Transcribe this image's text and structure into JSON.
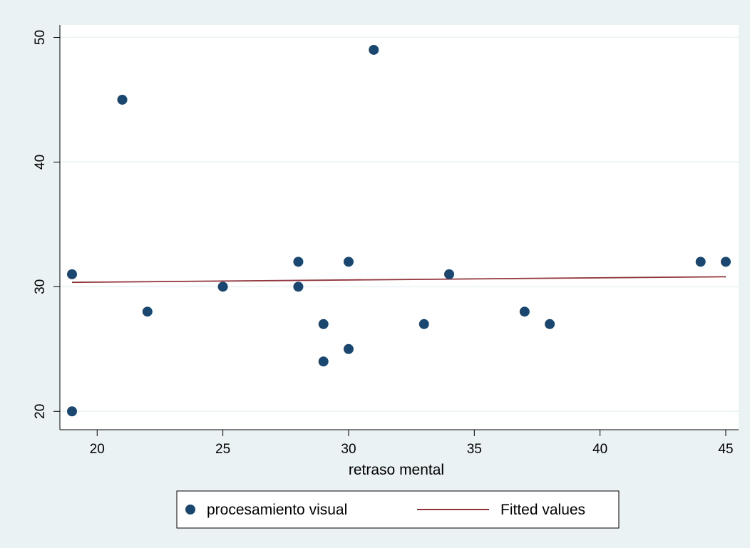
{
  "chart_data": {
    "type": "scatter",
    "xlabel": "retraso mental",
    "ylabel": "",
    "xlim": [
      19,
      45
    ],
    "ylim": [
      19.5,
      51
    ],
    "xticks": [
      20,
      25,
      30,
      35,
      40,
      45
    ],
    "yticks": [
      20,
      30,
      40,
      50
    ],
    "grid": "horizontal",
    "legend_position": "bottom",
    "series": [
      {
        "name": "procesamiento visual",
        "kind": "scatter",
        "color": "#1a476f",
        "points": [
          {
            "x": 19,
            "y": 31
          },
          {
            "x": 19,
            "y": 20
          },
          {
            "x": 21,
            "y": 45
          },
          {
            "x": 22,
            "y": 28
          },
          {
            "x": 25,
            "y": 30
          },
          {
            "x": 28,
            "y": 32
          },
          {
            "x": 28,
            "y": 30
          },
          {
            "x": 29,
            "y": 27
          },
          {
            "x": 29,
            "y": 24
          },
          {
            "x": 30,
            "y": 32
          },
          {
            "x": 30,
            "y": 25
          },
          {
            "x": 31,
            "y": 49
          },
          {
            "x": 33,
            "y": 27
          },
          {
            "x": 34,
            "y": 31
          },
          {
            "x": 37,
            "y": 28
          },
          {
            "x": 38,
            "y": 27
          },
          {
            "x": 44,
            "y": 32
          },
          {
            "x": 45,
            "y": 32
          }
        ]
      },
      {
        "name": "Fitted values",
        "kind": "line",
        "color": "#90353b",
        "points": [
          {
            "x": 19,
            "y": 30.35
          },
          {
            "x": 45,
            "y": 30.8
          }
        ]
      }
    ]
  }
}
